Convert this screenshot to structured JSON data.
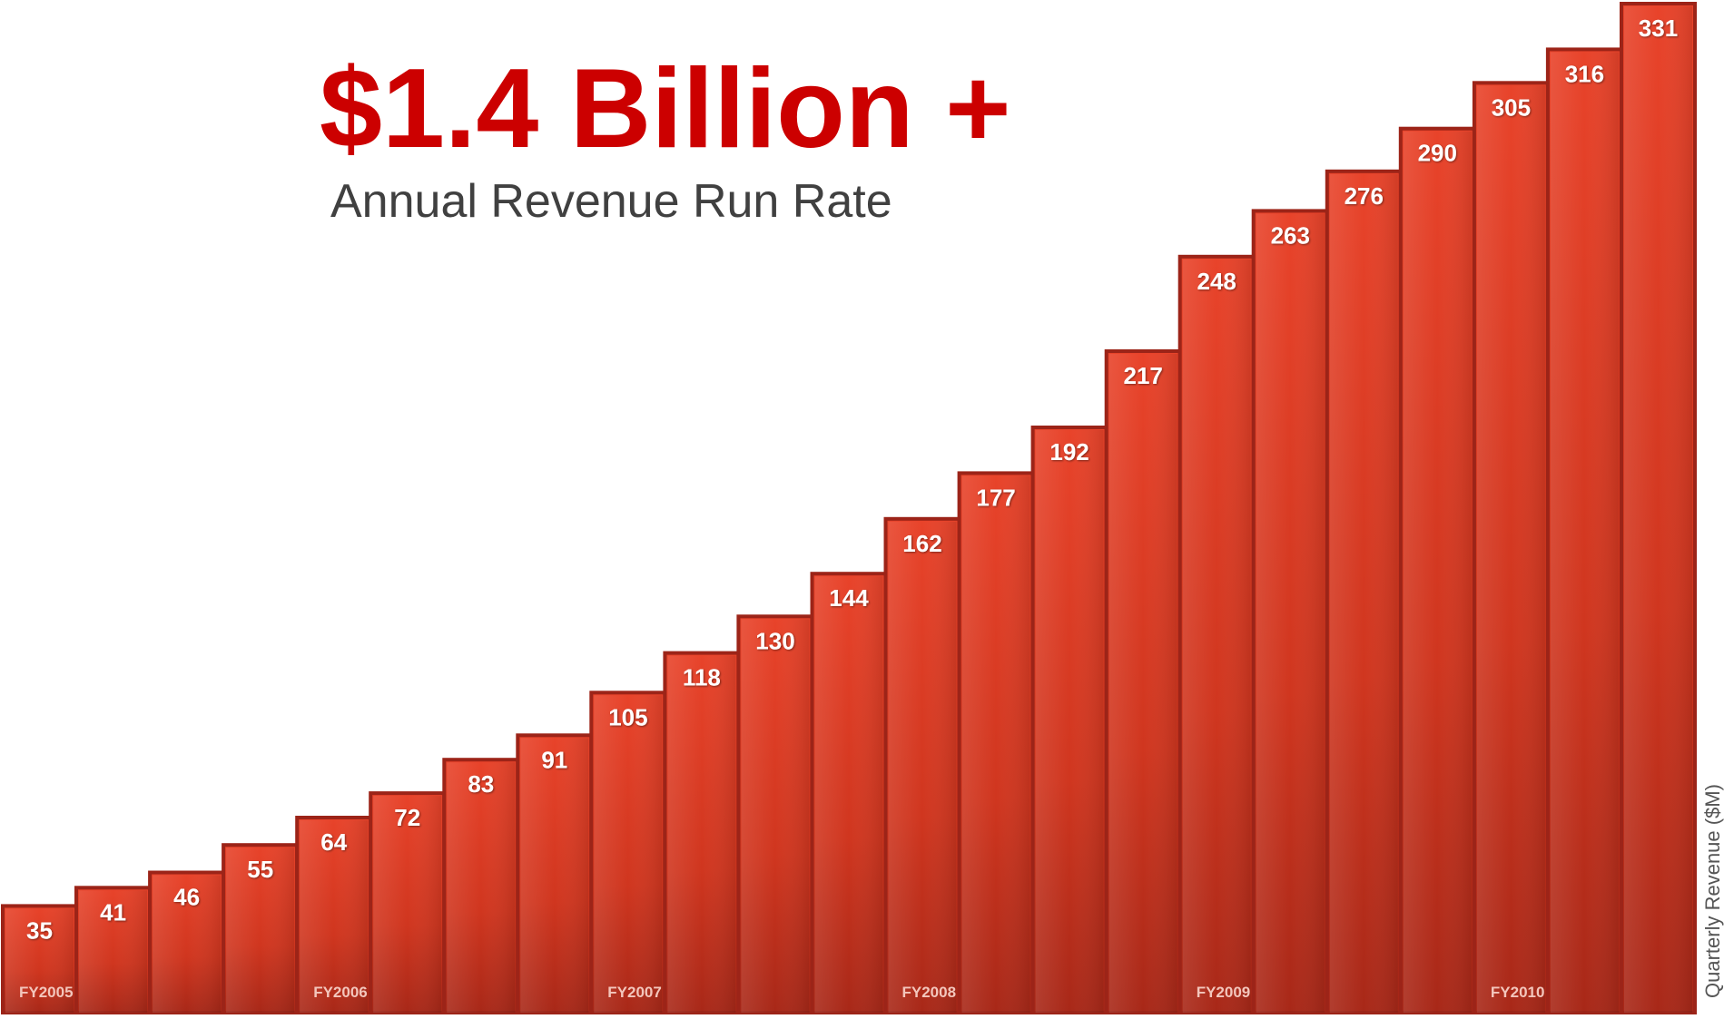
{
  "headline": {
    "main": "$1.4 Billion +",
    "sub": "Annual Revenue Run Rate"
  },
  "chart_data": {
    "type": "bar",
    "title": "",
    "xlabel": "",
    "ylabel": "Quarterly Revenue ($M)",
    "categories": [
      "",
      "",
      "",
      "",
      "",
      "",
      "",
      "",
      "",
      "",
      "",
      "",
      "",
      "",
      "",
      "",
      "",
      "",
      "",
      "",
      "",
      "",
      ""
    ],
    "values": [
      35,
      41,
      46,
      55,
      64,
      72,
      83,
      91,
      105,
      118,
      130,
      144,
      162,
      177,
      192,
      217,
      248,
      263,
      276,
      290,
      305,
      316,
      331
    ],
    "fiscal_year_labels": [
      {
        "label": "FY2005",
        "bar_index": 0
      },
      {
        "label": "FY2006",
        "bar_index": 4
      },
      {
        "label": "FY2007",
        "bar_index": 8
      },
      {
        "label": "FY2008",
        "bar_index": 12
      },
      {
        "label": "FY2009",
        "bar_index": 16
      },
      {
        "label": "FY2010",
        "bar_index": 20
      }
    ],
    "ylim": [
      0,
      331
    ],
    "grid": false,
    "legend": "none",
    "data_labels": true,
    "colors": {
      "bar_top": "#e8432a",
      "bar_bottom": "#a82818",
      "bar_border": "#9c2418",
      "label_text": "#ffffff",
      "fy_text": "#f3c6bc",
      "headline": "#cc0000",
      "subheadline": "#404040"
    }
  }
}
